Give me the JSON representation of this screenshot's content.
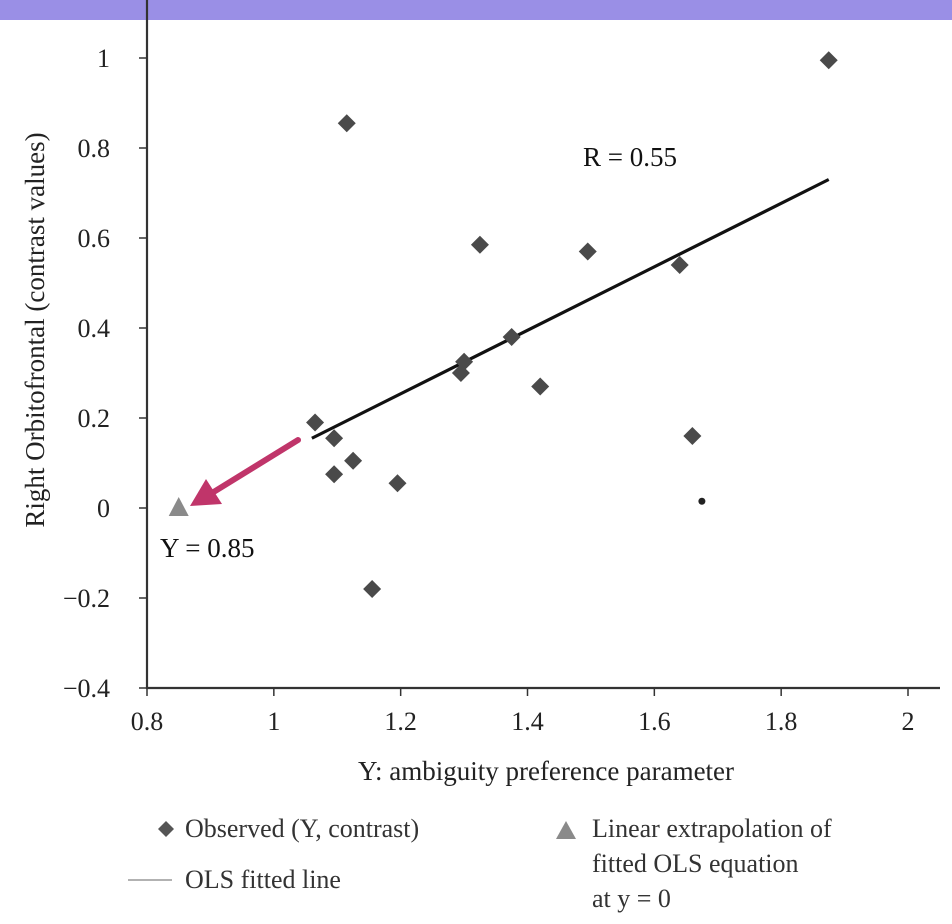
{
  "chart_data": {
    "type": "scatter",
    "xlabel": "Y: ambiguity preference parameter",
    "ylabel": "Right Orbitofrontal (contrast values)",
    "xlim": [
      0.8,
      2.0
    ],
    "ylim": [
      -0.4,
      1.1
    ],
    "x_ticks": [
      "0.8",
      "1",
      "1.2",
      "1.4",
      "1.6",
      "1.8",
      "2"
    ],
    "y_ticks": [
      "1",
      "0.8",
      "0.6",
      "0.4",
      "0.2",
      "0",
      "−0.2",
      "−0.4"
    ],
    "series": [
      {
        "name": "Observed (Y, contrast)",
        "marker": "diamond",
        "points": [
          {
            "x": 1.065,
            "y": 0.19
          },
          {
            "x": 1.095,
            "y": 0.155
          },
          {
            "x": 1.095,
            "y": 0.075
          },
          {
            "x": 1.115,
            "y": 0.855
          },
          {
            "x": 1.125,
            "y": 0.105
          },
          {
            "x": 1.155,
            "y": -0.18
          },
          {
            "x": 1.195,
            "y": 0.055
          },
          {
            "x": 1.295,
            "y": 0.3
          },
          {
            "x": 1.3,
            "y": 0.325
          },
          {
            "x": 1.325,
            "y": 0.585
          },
          {
            "x": 1.375,
            "y": 0.38
          },
          {
            "x": 1.42,
            "y": 0.27
          },
          {
            "x": 1.495,
            "y": 0.57
          },
          {
            "x": 1.64,
            "y": 0.54
          },
          {
            "x": 1.66,
            "y": 0.16
          },
          {
            "x": 1.875,
            "y": 0.995
          }
        ]
      },
      {
        "name": "OLS fitted line",
        "marker": "line",
        "points": [
          {
            "x": 1.06,
            "y": 0.155
          },
          {
            "x": 1.875,
            "y": 0.73
          }
        ]
      },
      {
        "name": "Linear extrapolation of fitted OLS equation at y = 0",
        "marker": "triangle",
        "points": [
          {
            "x": 0.85,
            "y": 0.0
          }
        ]
      },
      {
        "name": "",
        "marker": "dot",
        "points": [
          {
            "x": 1.675,
            "y": 0.015
          }
        ]
      }
    ],
    "annotations": {
      "r_label": "R = 0.55",
      "y_label": "Y = 0.85"
    },
    "arrow_color": "#c0356a",
    "legend": [
      {
        "label": "Observed (Y, contrast)",
        "symbol": "diamond-icon"
      },
      {
        "label": "OLS fitted line",
        "symbol": "line-icon"
      },
      {
        "label": "Linear extrapolation of",
        "symbol": "triangle-icon"
      },
      {
        "label": "fitted OLS equation",
        "symbol": ""
      },
      {
        "label": "at y = 0",
        "symbol": ""
      }
    ]
  }
}
